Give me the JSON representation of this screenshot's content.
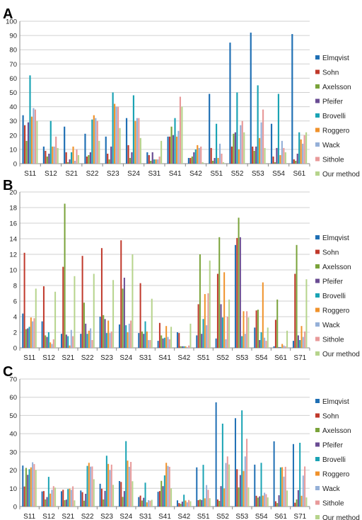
{
  "colors": [
    "#1f6fb4",
    "#c0392b",
    "#7aa33a",
    "#6a4c93",
    "#1aa3b4",
    "#f0922b",
    "#95b0d8",
    "#e89a9a",
    "#b6d48c"
  ],
  "chart_data": [
    {
      "type": "bar",
      "panel_label": "A",
      "ylim": [
        0,
        100
      ],
      "yticks": [
        0,
        10,
        20,
        30,
        40,
        50,
        60,
        70,
        80,
        90,
        100
      ],
      "grid": true,
      "legend": "right",
      "categories": [
        "S11",
        "S12",
        "S21",
        "S22",
        "S23",
        "S24",
        "S31",
        "S41",
        "S42",
        "S51",
        "S52",
        "S53",
        "S54",
        "S61"
      ],
      "series": [
        {
          "name": "Elmqvist",
          "values": [
            34,
            12,
            26,
            21,
            19,
            32,
            8,
            19,
            4,
            49,
            85,
            92,
            28,
            91
          ]
        },
        {
          "name": "Sohn",
          "values": [
            27,
            9,
            8,
            5,
            7,
            13,
            6,
            19,
            4,
            11,
            12,
            12,
            5,
            3
          ]
        },
        {
          "name": "Axelsson",
          "values": [
            16,
            5,
            1,
            6,
            3,
            4,
            2,
            26,
            5,
            2,
            21,
            9,
            1,
            2
          ]
        },
        {
          "name": "Pfeifer",
          "values": [
            29,
            7,
            3,
            8,
            12,
            8,
            8,
            20,
            8,
            4,
            22,
            12,
            11,
            7
          ]
        },
        {
          "name": "Brovelli",
          "values": [
            62,
            30,
            8,
            31,
            50,
            48,
            3,
            32,
            10,
            28,
            50,
            55,
            49,
            22
          ]
        },
        {
          "name": "Roggero",
          "values": [
            33,
            12,
            12,
            34,
            42,
            30,
            3,
            19,
            13,
            4,
            10,
            18,
            6,
            17
          ]
        },
        {
          "name": "Wack",
          "values": [
            39,
            12,
            2,
            32,
            40,
            32,
            3,
            23,
            11,
            14,
            27,
            29,
            16,
            14
          ]
        },
        {
          "name": "Sithole",
          "values": [
            38,
            19,
            10,
            30,
            40,
            32,
            5,
            47,
            12,
            7,
            30,
            38,
            11,
            20
          ]
        },
        {
          "name": "Our method",
          "values": [
            30,
            11,
            6,
            16,
            25,
            18,
            16,
            40,
            1,
            1,
            22,
            11,
            8,
            22
          ]
        }
      ]
    },
    {
      "type": "bar",
      "panel_label": "B",
      "ylim": [
        0,
        20
      ],
      "yticks": [
        0,
        2,
        4,
        6,
        8,
        10,
        12,
        14,
        16,
        18,
        20
      ],
      "grid": true,
      "legend": "right",
      "categories": [
        "S11",
        "S12",
        "S21",
        "S22",
        "S23",
        "S24",
        "S31",
        "S41",
        "S42",
        "S51",
        "S52",
        "S53",
        "S54",
        "S61",
        "S71"
      ],
      "series": [
        {
          "name": "Elmqvist",
          "values": [
            4.4,
            3.4,
            1.8,
            1.8,
            4.0,
            3.0,
            1.9,
            0.9,
            2.0,
            1.6,
            1.2,
            13.2,
            2.6,
            0.2,
            0.9
          ]
        },
        {
          "name": "Sohn",
          "values": [
            12.2,
            7.9,
            10.4,
            11.8,
            12.8,
            13.8,
            8.3,
            3.2,
            1.9,
            5.6,
            9.5,
            14.1,
            4.8,
            3.6,
            9.5
          ]
        },
        {
          "name": "Axelsson",
          "values": [
            2.4,
            1.6,
            18.5,
            5.8,
            4.2,
            7.6,
            2.1,
            1.6,
            0.2,
            12.0,
            14.2,
            16.7,
            4.9,
            6.2,
            13.2
          ]
        },
        {
          "name": "Pfeifer",
          "values": [
            2.5,
            1.4,
            1.7,
            3.1,
            3.7,
            9.0,
            1.8,
            1.2,
            0.2,
            1.8,
            5.6,
            14.2,
            1.0,
            0.1,
            1.6
          ]
        },
        {
          "name": "Brovelli",
          "values": [
            2.7,
            2.0,
            1.5,
            1.8,
            1.9,
            2.9,
            3.4,
            1.3,
            0.2,
            3.7,
            3.9,
            1.5,
            2.0,
            0.1,
            1.0
          ]
        },
        {
          "name": "Roggero",
          "values": [
            3.9,
            0.7,
            0.3,
            2.2,
            3.5,
            2.0,
            2.1,
            2.8,
            0.2,
            6.9,
            9.7,
            4.7,
            8.4,
            0.5,
            2.8
          ]
        },
        {
          "name": "Wack",
          "values": [
            3.4,
            0.5,
            2.3,
            2.5,
            1.9,
            3.1,
            1.0,
            1.4,
            0.1,
            2.9,
            1.1,
            1.8,
            1.3,
            0.3,
            1.4
          ]
        },
        {
          "name": "Sithole",
          "values": [
            3.8,
            1.1,
            1.5,
            1.0,
            2.1,
            3.5,
            1.0,
            1.1,
            0.3,
            7.0,
            4.0,
            4.7,
            0.9,
            0.2,
            2.1
          ]
        },
        {
          "name": "Our method",
          "values": [
            7.6,
            7.2,
            9.2,
            9.5,
            8.7,
            12.0,
            6.3,
            2.7,
            3.1,
            11.2,
            6.2,
            3.9,
            2.6,
            2.2,
            8.8
          ]
        }
      ]
    },
    {
      "type": "bar",
      "panel_label": "C",
      "ylim": [
        0,
        70
      ],
      "yticks": [
        0,
        10,
        20,
        30,
        40,
        50,
        60,
        70
      ],
      "grid": true,
      "legend": "right",
      "categories": [
        "S11",
        "S12",
        "S21",
        "S22",
        "S23",
        "S24",
        "S31",
        "S41",
        "S42",
        "S51",
        "S52",
        "S53",
        "S54",
        "S61",
        "S71"
      ],
      "series": [
        {
          "name": "Elmqvist",
          "values": [
            22.5,
            8.3,
            8.4,
            8.8,
            12.5,
            14.0,
            5.2,
            8.1,
            3.4,
            21.5,
            57.2,
            48.5,
            23.0,
            35.8,
            34.3
          ]
        },
        {
          "name": "Sohn",
          "values": [
            11.0,
            8.5,
            9.2,
            7.9,
            9.8,
            13.5,
            6.0,
            8.5,
            1.9,
            3.5,
            3.9,
            20.5,
            5.9,
            2.9,
            2.1
          ]
        },
        {
          "name": "Axelsson",
          "values": [
            21.2,
            3.9,
            3.5,
            3.2,
            3.9,
            5.3,
            3.3,
            14.1,
            1.5,
            3.9,
            3.1,
            10.5,
            4.9,
            1.9,
            3.9
          ]
        },
        {
          "name": "Pfeifer",
          "values": [
            17.4,
            5.2,
            3.8,
            7.0,
            8.6,
            8.5,
            4.8,
            11.2,
            2.7,
            3.6,
            11.2,
            17.3,
            5.6,
            6.2,
            9.0
          ]
        },
        {
          "name": "Brovelli",
          "values": [
            20.5,
            16.3,
            9.6,
            22.3,
            27.9,
            35.9,
            13.1,
            17.1,
            6.5,
            22.9,
            45.5,
            52.8,
            24.0,
            21.5,
            35.0
          ]
        },
        {
          "name": "Roggero",
          "values": [
            21.5,
            7.1,
            9.8,
            24.0,
            23.4,
            25.2,
            2.3,
            24.0,
            3.3,
            4.5,
            9.9,
            19.5,
            6.0,
            21.6,
            5.9
          ]
        },
        {
          "name": "Wack",
          "values": [
            24.3,
            9.2,
            9.2,
            21.9,
            20.0,
            21.8,
            3.5,
            22.3,
            2.3,
            11.8,
            23.9,
            27.5,
            7.6,
            16.4,
            17.0
          ]
        },
        {
          "name": "Sithole",
          "values": [
            23.3,
            11.2,
            11.1,
            22.0,
            23.0,
            24.5,
            3.2,
            21.8,
            3.6,
            9.2,
            27.5,
            37.2,
            6.8,
            21.8,
            22.0
          ]
        },
        {
          "name": "Our method",
          "values": [
            20.1,
            10.4,
            3.4,
            15.0,
            11.9,
            13.9,
            3.7,
            10.0,
            2.9,
            4.6,
            23.1,
            10.5,
            5.0,
            8.8,
            5.0
          ]
        }
      ]
    }
  ]
}
